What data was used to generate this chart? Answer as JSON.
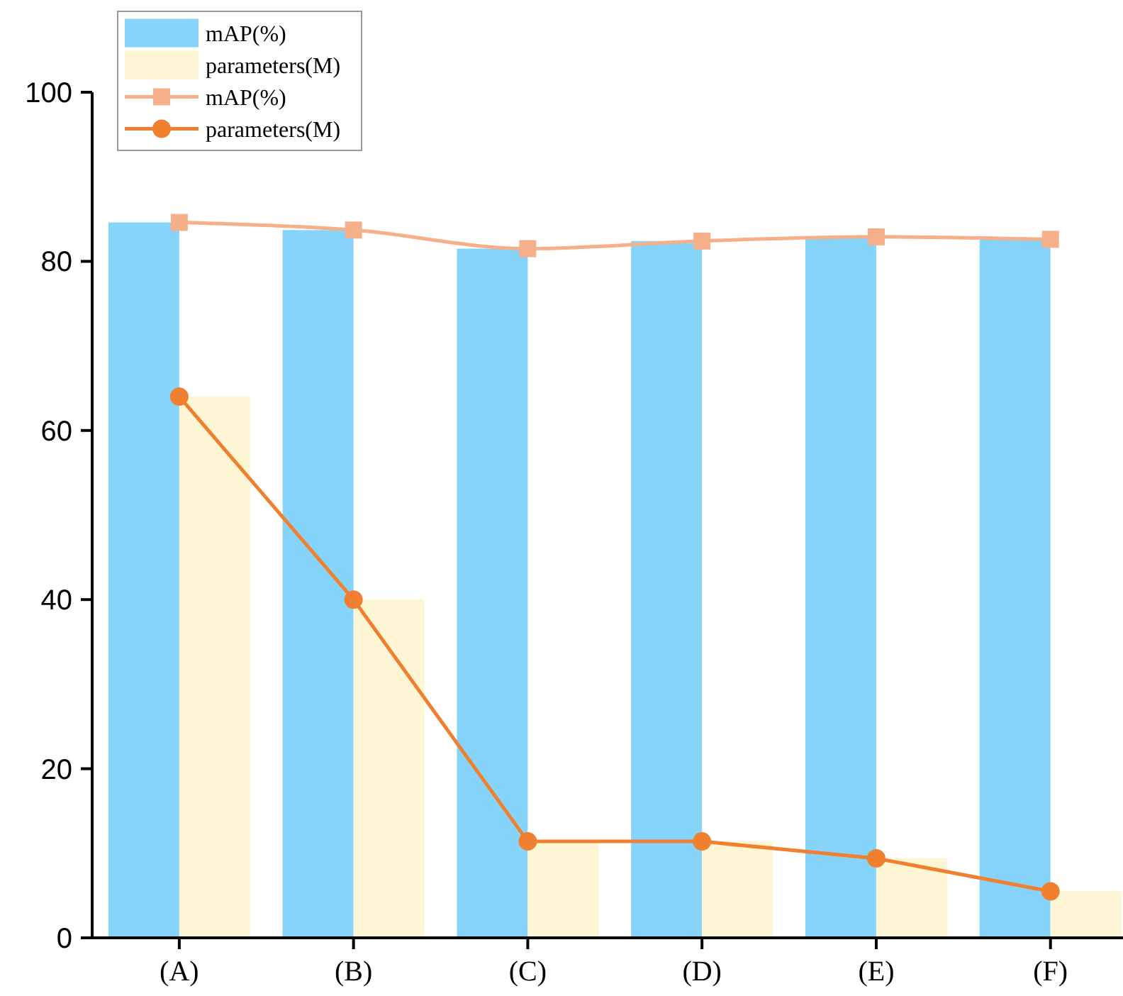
{
  "chart_data": {
    "type": "bar",
    "categories": [
      "(A)",
      "(B)",
      "(C)",
      "(D)",
      "(E)",
      "(F)"
    ],
    "series": [
      {
        "name": "mAP(%)",
        "color": "#87d4fb",
        "values": [
          84.6,
          83.7,
          81.5,
          82.4,
          82.9,
          82.6
        ]
      },
      {
        "name": "parameters(M)",
        "color": "#fdf5d3",
        "values": [
          64,
          40,
          11.4,
          11.4,
          9.4,
          5.5
        ]
      },
      {
        "name": "mAP(%)",
        "type": "line",
        "color": "#f5b08a",
        "marker": "square",
        "values": [
          84.6,
          83.7,
          81.5,
          82.4,
          82.9,
          82.6
        ]
      },
      {
        "name": "parameters(M)",
        "type": "line",
        "color": "#f08030",
        "marker": "circle",
        "values": [
          64,
          40,
          11.4,
          11.4,
          9.4,
          5.5
        ]
      }
    ],
    "ylim": [
      0,
      100
    ],
    "yticks": [
      0,
      20,
      40,
      60,
      80,
      100
    ],
    "legend": "top left",
    "grid": false
  }
}
